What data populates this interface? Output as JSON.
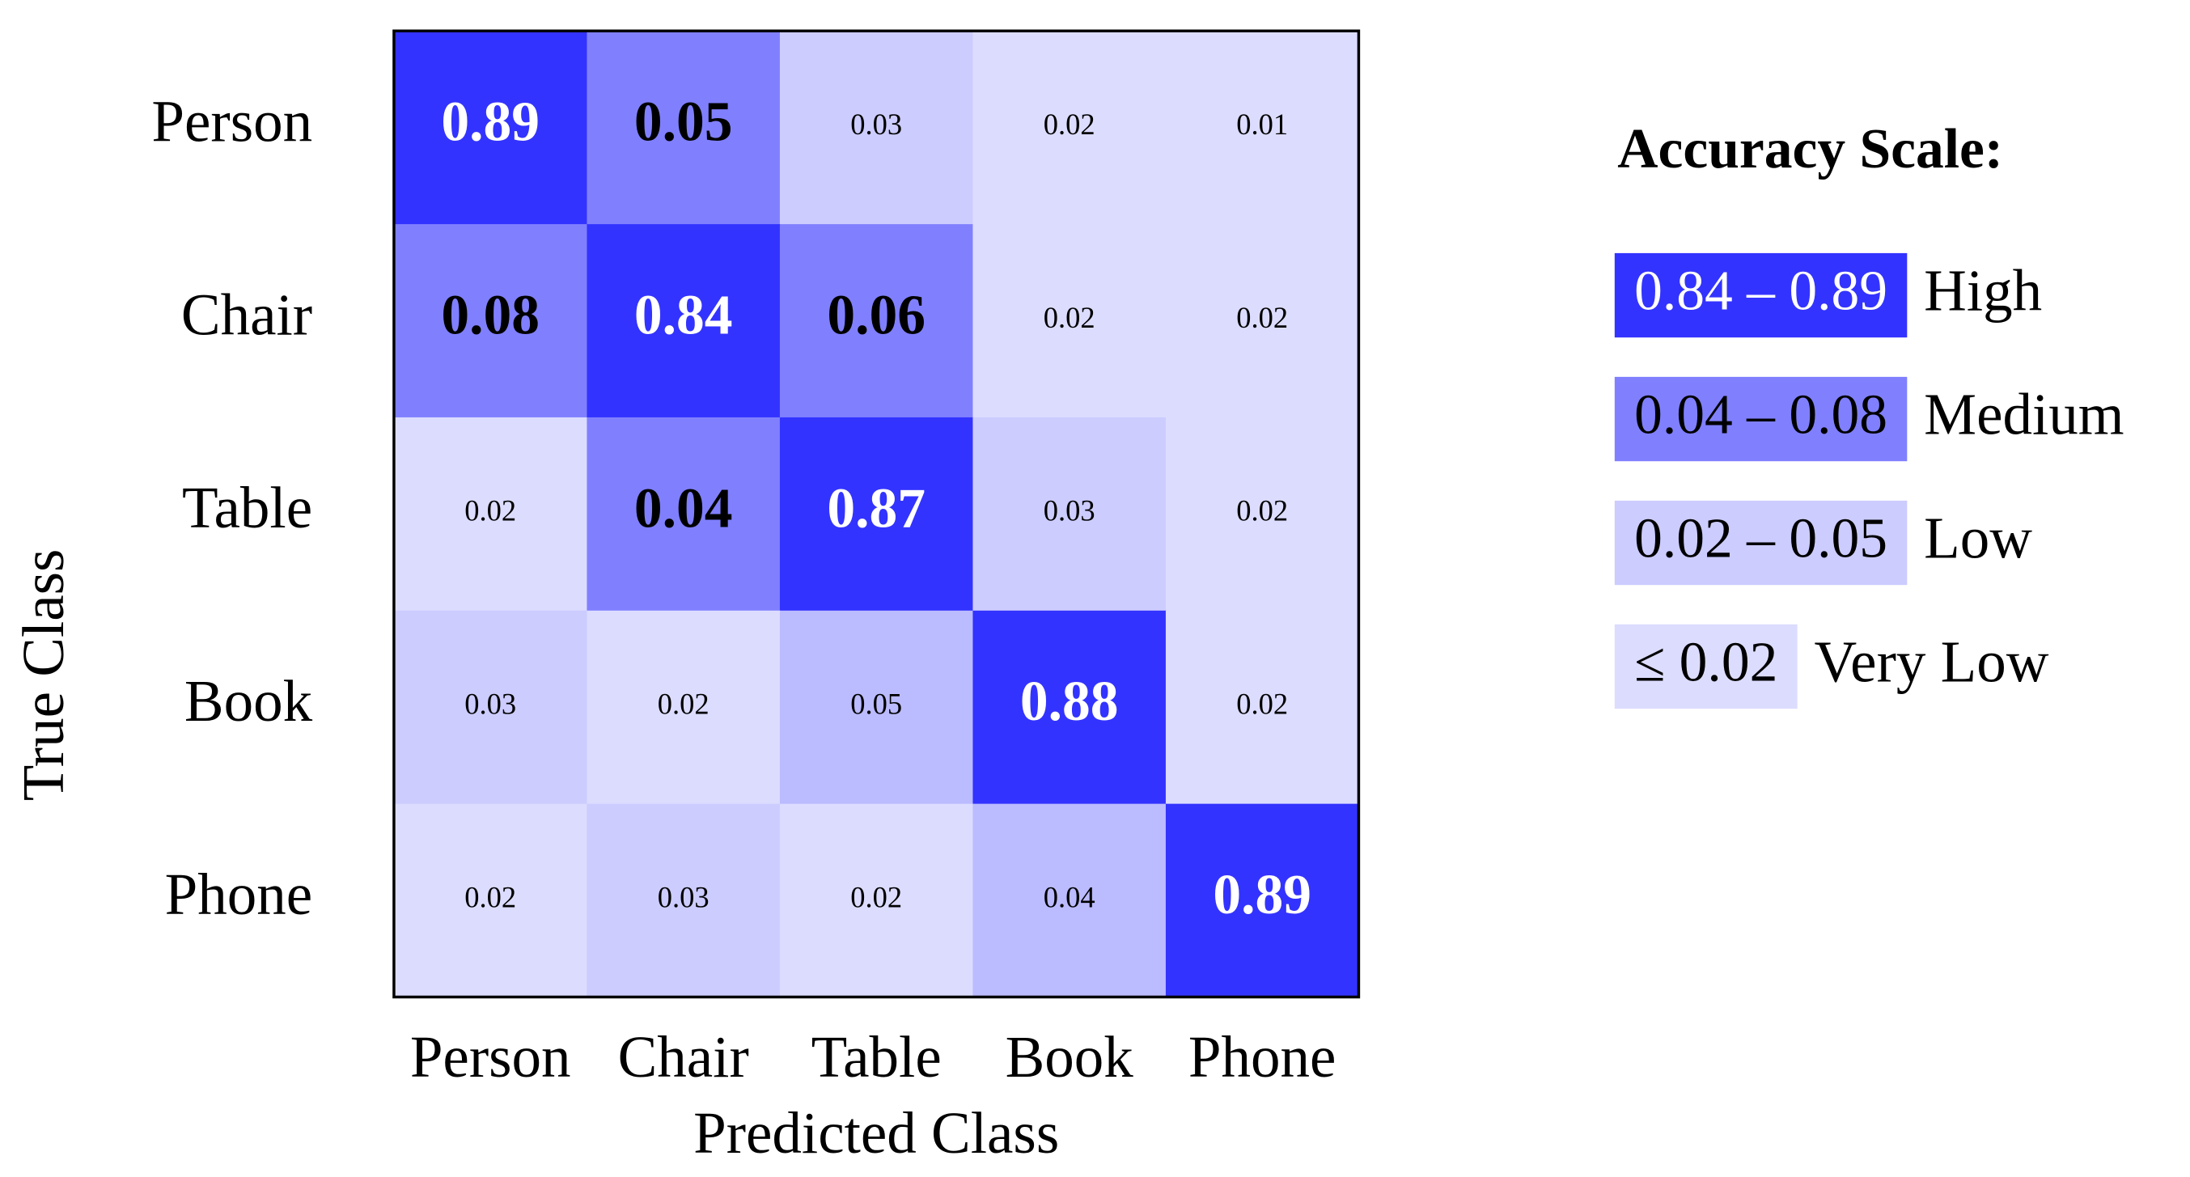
{
  "chart_data": {
    "type": "heatmap",
    "x_label": "Predicted Class",
    "y_label": "True Class",
    "x_categories": [
      "Person",
      "Chair",
      "Table",
      "Book",
      "Phone"
    ],
    "y_categories": [
      "Person",
      "Chair",
      "Table",
      "Book",
      "Phone"
    ],
    "values": [
      [
        0.89,
        0.05,
        0.03,
        0.02,
        0.01
      ],
      [
        0.08,
        0.84,
        0.06,
        0.02,
        0.02
      ],
      [
        0.02,
        0.04,
        0.87,
        0.03,
        0.02
      ],
      [
        0.03,
        0.02,
        0.05,
        0.88,
        0.02
      ],
      [
        0.02,
        0.03,
        0.02,
        0.04,
        0.89
      ]
    ],
    "colors": [
      [
        "#3333ff",
        "#8080ff",
        "#ccccff",
        "#dcdcff",
        "#dcdcff"
      ],
      [
        "#8080ff",
        "#3333ff",
        "#8080ff",
        "#dcdcff",
        "#dcdcff"
      ],
      [
        "#dcdcff",
        "#8080ff",
        "#3333ff",
        "#ccccff",
        "#dcdcff"
      ],
      [
        "#ccccff",
        "#dcdcff",
        "#bbbbff",
        "#3333ff",
        "#dcdcff"
      ],
      [
        "#dcdcff",
        "#ccccff",
        "#dcdcff",
        "#bbbbff",
        "#3333ff"
      ]
    ],
    "legend": {
      "title": "Accuracy Scale:",
      "items": [
        {
          "range": "0.84 – 0.89",
          "label": "High",
          "color": "#3333ff"
        },
        {
          "range": "0.04 – 0.08",
          "label": "Medium",
          "color": "#8080ff"
        },
        {
          "range": "0.02 – 0.05",
          "label": "Low",
          "color": "#ccccff"
        },
        {
          "range": "≤ 0.02",
          "label": "Very Low",
          "color": "#dcdcff"
        }
      ]
    }
  }
}
